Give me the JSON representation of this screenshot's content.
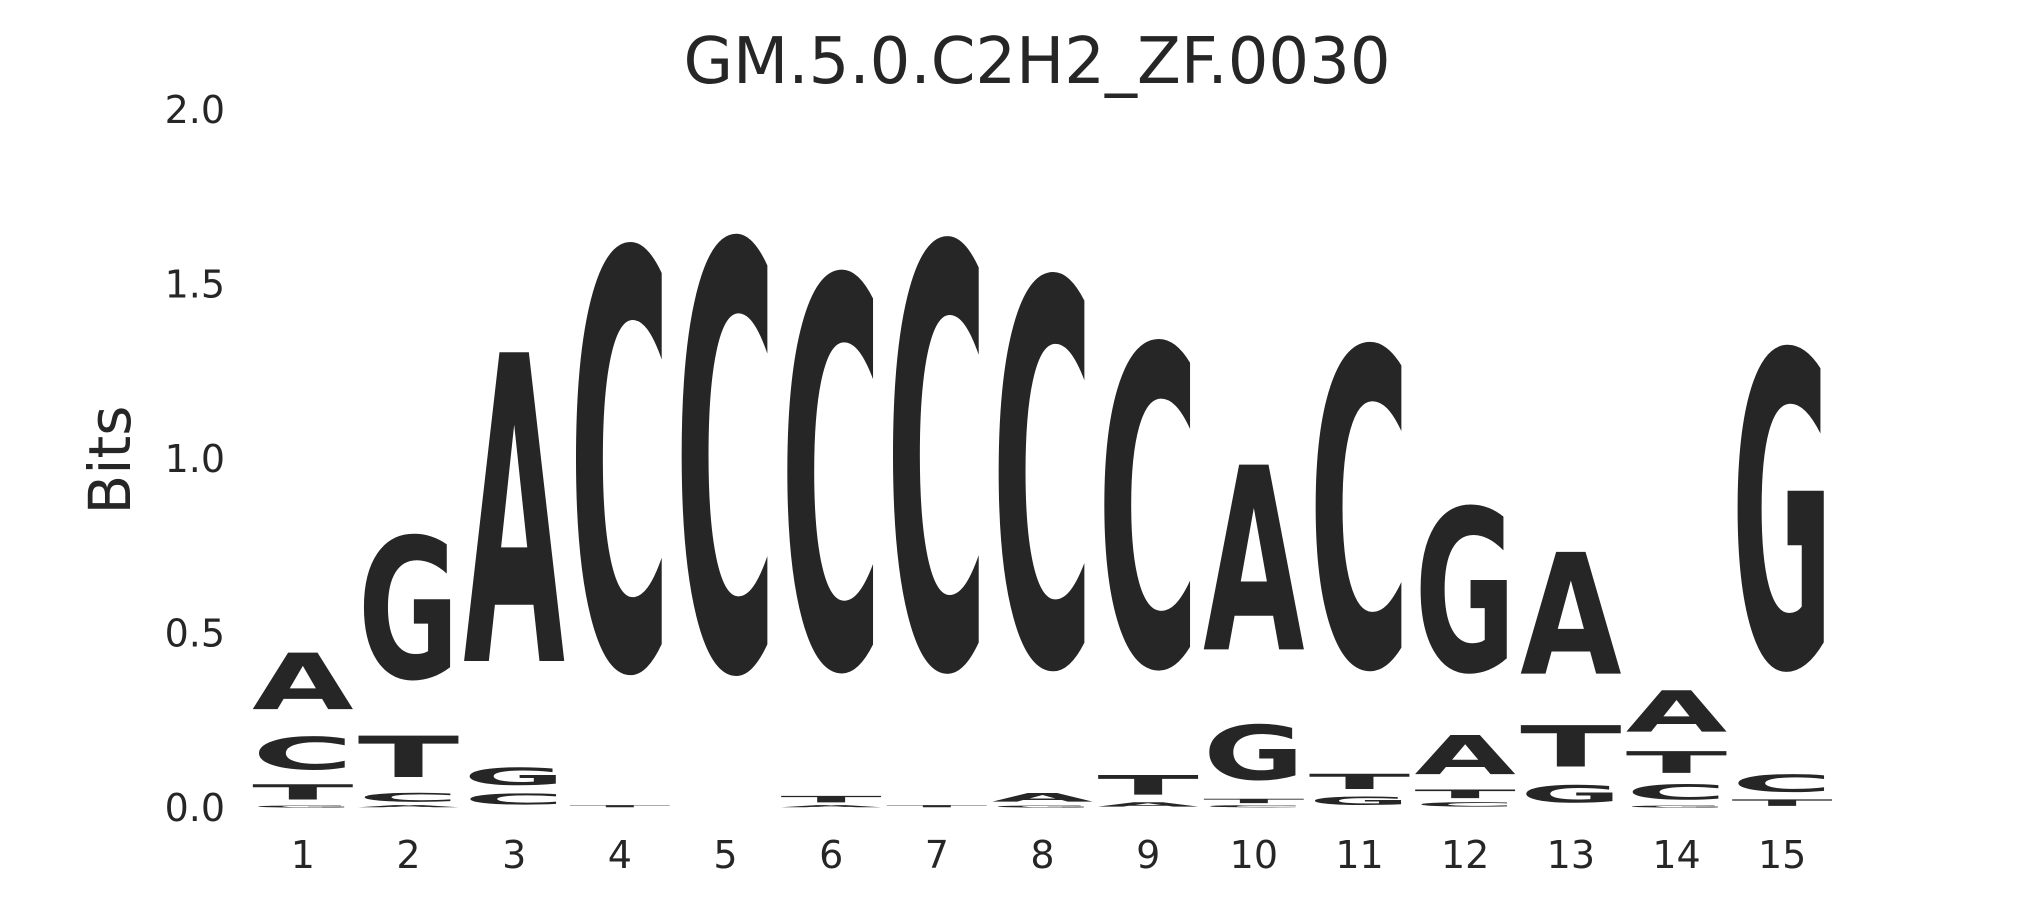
{
  "chart_data": {
    "type": "sequence_logo",
    "title": "GM.5.0.C2H2_ZF.0030",
    "ylabel": "Bits",
    "xlabel": "",
    "ylim": [
      0,
      2.0
    ],
    "yticks": [
      "0.0",
      "0.5",
      "1.0",
      "1.5",
      "2.0"
    ],
    "xticks": [
      "1",
      "2",
      "3",
      "4",
      "5",
      "6",
      "7",
      "8",
      "9",
      "10",
      "11",
      "12",
      "13",
      "14",
      "15"
    ],
    "colors": {
      "A": "#008000",
      "C": "#0000ff",
      "G": "#ffa500",
      "T": "#ff0000"
    },
    "positions": [
      {
        "pos": 1,
        "stack": [
          [
            "G",
            0.01
          ],
          [
            "T",
            0.07
          ],
          [
            "C",
            0.15
          ],
          [
            "A",
            0.26
          ]
        ]
      },
      {
        "pos": 2,
        "stack": [
          [
            "A",
            0.01
          ],
          [
            "C",
            0.04
          ],
          [
            "T",
            0.19
          ],
          [
            "G",
            0.65
          ]
        ]
      },
      {
        "pos": 3,
        "stack": [
          [
            "C",
            0.05
          ],
          [
            "G",
            0.08
          ],
          [
            "A",
            1.42
          ]
        ]
      },
      {
        "pos": 4,
        "stack": [
          [
            "T",
            0.01
          ],
          [
            "C",
            1.92
          ]
        ]
      },
      {
        "pos": 5,
        "stack": [
          [
            "C",
            1.96
          ]
        ]
      },
      {
        "pos": 6,
        "stack": [
          [
            "A",
            0.01
          ],
          [
            "T",
            0.03
          ],
          [
            "C",
            1.79
          ]
        ]
      },
      {
        "pos": 7,
        "stack": [
          [
            "T",
            0.01
          ],
          [
            "C",
            1.94
          ]
        ]
      },
      {
        "pos": 8,
        "stack": [
          [
            "G",
            0.01
          ],
          [
            "A",
            0.04
          ],
          [
            "C",
            1.77
          ]
        ]
      },
      {
        "pos": 9,
        "stack": [
          [
            "A",
            0.02
          ],
          [
            "T",
            0.09
          ],
          [
            "C",
            1.47
          ]
        ]
      },
      {
        "pos": 10,
        "stack": [
          [
            "C",
            0.01
          ],
          [
            "T",
            0.02
          ],
          [
            "G",
            0.25
          ],
          [
            "A",
            0.85
          ]
        ]
      },
      {
        "pos": 11,
        "stack": [
          [
            "G",
            0.04
          ],
          [
            "T",
            0.07
          ],
          [
            "C",
            1.46
          ]
        ]
      },
      {
        "pos": 12,
        "stack": [
          [
            "C",
            0.02
          ],
          [
            "T",
            0.04
          ],
          [
            "A",
            0.18
          ],
          [
            "G",
            0.75
          ]
        ]
      },
      {
        "pos": 13,
        "stack": [
          [
            "G",
            0.08
          ],
          [
            "T",
            0.19
          ],
          [
            "A",
            0.56
          ]
        ]
      },
      {
        "pos": 14,
        "stack": [
          [
            "G",
            0.01
          ],
          [
            "C",
            0.07
          ],
          [
            "T",
            0.1
          ],
          [
            "A",
            0.19
          ]
        ]
      },
      {
        "pos": 15,
        "stack": [
          [
            "T",
            0.03
          ],
          [
            "C",
            0.08
          ],
          [
            "G",
            1.45
          ]
        ]
      }
    ]
  }
}
